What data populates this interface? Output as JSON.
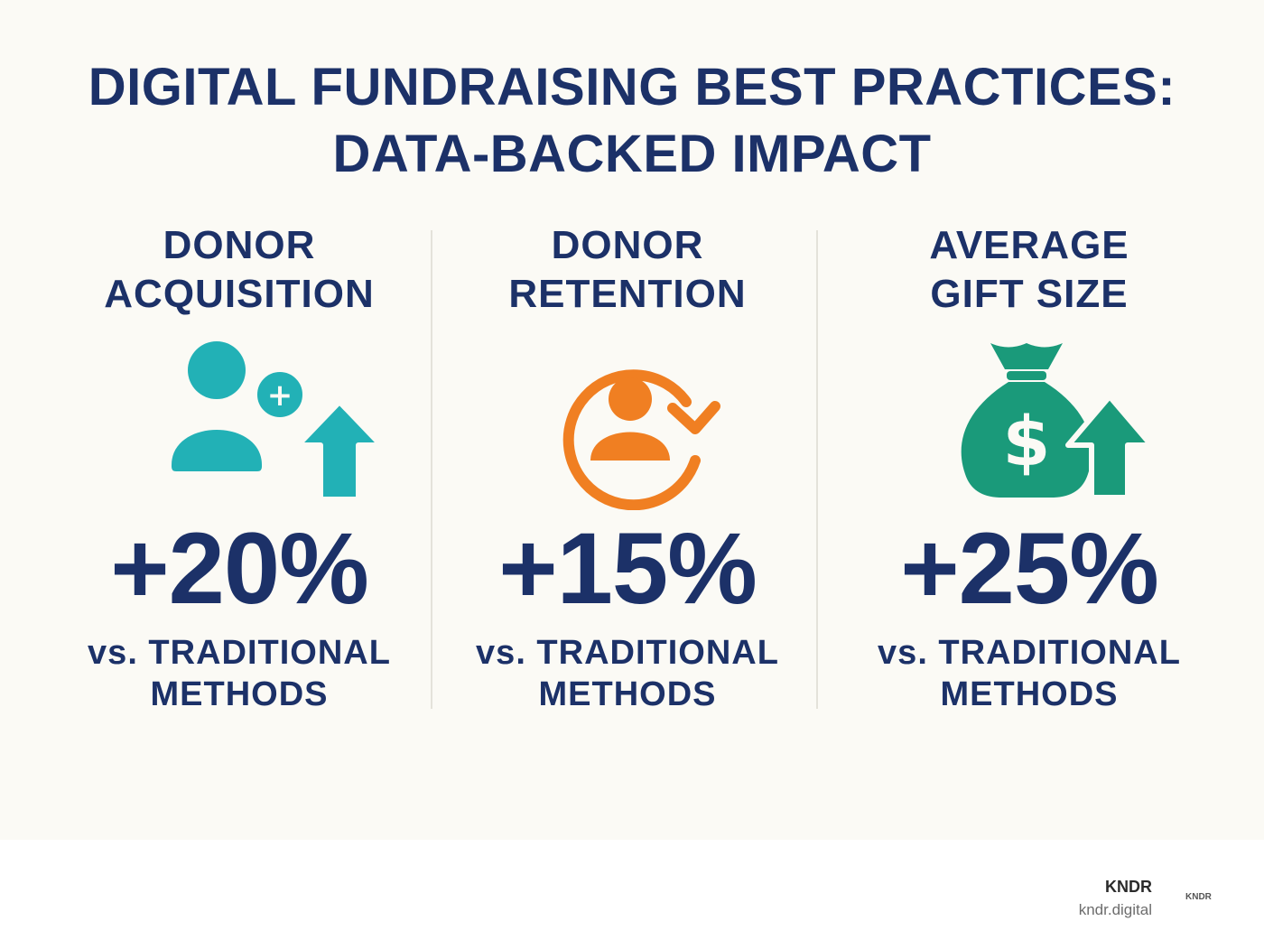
{
  "title": {
    "line1": "DIGITAL FUNDRAISING BEST PRACTICES:",
    "line2": "DATA-BACKED IMPACT"
  },
  "colors": {
    "navy": "#1c3168",
    "teal": "#22b1b6",
    "orange": "#f07f22",
    "green": "#1a9a7a",
    "background": "#fbfaf5"
  },
  "metrics": [
    {
      "heading_line1": "DONOR",
      "heading_line2": "ACQUISITION",
      "icon": "add-user-arrow-up-icon",
      "value": "+20%",
      "sub_line1": "vs. TRADITIONAL",
      "sub_line2": "METHODS"
    },
    {
      "heading_line1": "DONOR",
      "heading_line2": "RETENTION",
      "icon": "user-cycle-icon",
      "value": "+15%",
      "sub_line1": "vs. TRADITIONAL",
      "sub_line2": "METHODS"
    },
    {
      "heading_line1": "AVERAGE",
      "heading_line2": "GIFT SIZE",
      "icon": "money-bag-arrow-up-icon",
      "value": "+25%",
      "sub_line1": "vs. TRADITIONAL",
      "sub_line2": "METHODS"
    }
  ],
  "icon_glyphs": {
    "plus": "+",
    "dollar": "$"
  },
  "footer": {
    "brand": "KNDR",
    "url": "kndr.digital",
    "logo_text": "KNDR"
  }
}
